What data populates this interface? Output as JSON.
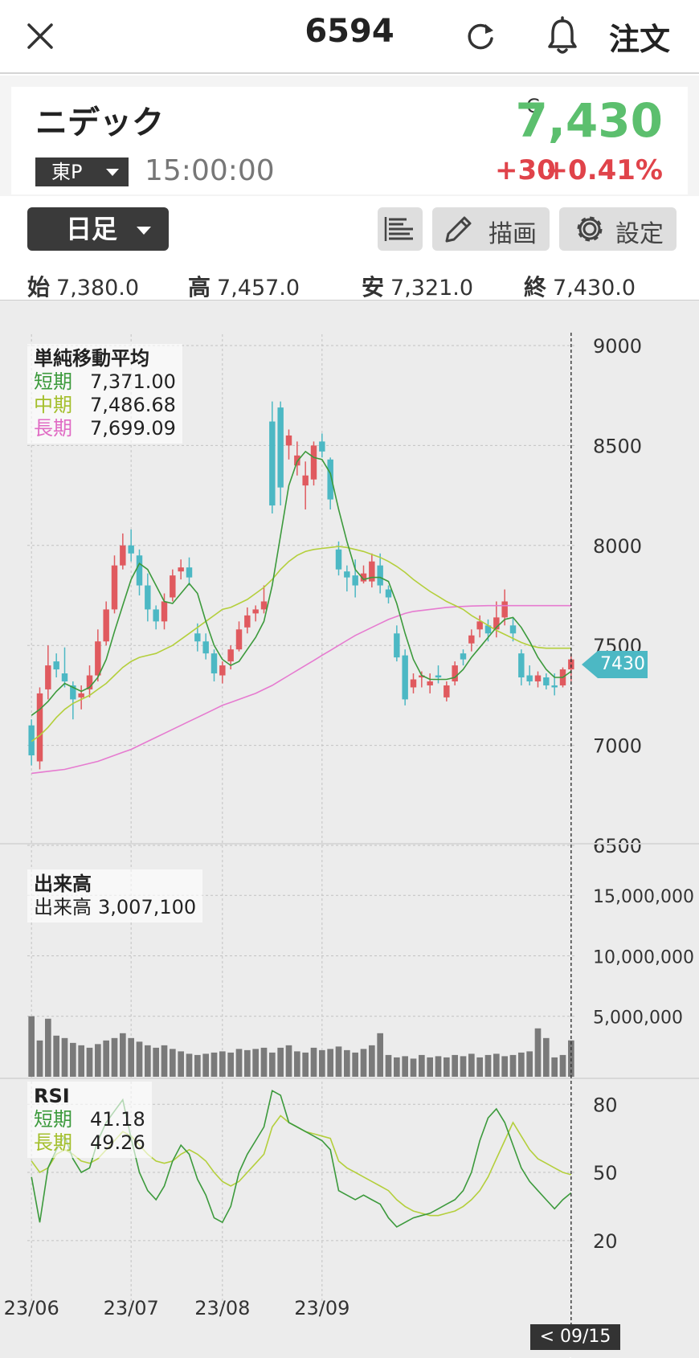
{
  "header": {
    "title": "6594",
    "order_label": "注文"
  },
  "stock": {
    "name": "ニデック",
    "market": "東P",
    "time": "15:00:00",
    "close_marker": "C",
    "price": "7,430",
    "change": "+30",
    "change_pct": "+0.41%"
  },
  "toolbar": {
    "period": "日足",
    "draw_label": "描画",
    "settings_label": "設定"
  },
  "ohlc": {
    "open_label": "始",
    "open": "7,380.0",
    "high_label": "高",
    "high": "7,457.0",
    "low_label": "安",
    "low": "7,321.0",
    "close_label": "終",
    "close": "7,430.0"
  },
  "sma_legend": {
    "title": "単純移動平均",
    "short_label": "短期",
    "short": "7,371.00",
    "mid_label": "中期",
    "mid": "7,486.68",
    "long_label": "長期",
    "long": "7,699.09"
  },
  "vol_legend": {
    "title": "出来高",
    "label": "出来高",
    "value": "3,007,100"
  },
  "rsi_legend": {
    "title": "RSI",
    "short_label": "短期",
    "short": "41.18",
    "long_label": "長期",
    "long": "49.26"
  },
  "current_price_tag": "7430",
  "date_tag": "< 09/15 >",
  "colors": {
    "up": "#e05a5f",
    "down": "#4cb8c4",
    "sma_short": "#3c9a3c",
    "sma_mid": "#b4cf3c",
    "sma_long": "#e67bd0",
    "price_green": "#5cbf6e",
    "change_red": "#e0434a"
  },
  "chart_data": {
    "type": "candlestick",
    "x_ticks": [
      "23/06",
      "23/07",
      "23/08",
      "23/09"
    ],
    "x_tick_index": [
      0,
      12,
      23,
      35
    ],
    "y_ticks": [
      9000,
      8500,
      8000,
      7500,
      7000,
      6500
    ],
    "ylim": [
      6500,
      9000
    ],
    "vol_ticks": [
      {
        "label": "15,000,000",
        "v": 15000000
      },
      {
        "label": "10,000,000",
        "v": 10000000
      },
      {
        "label": "5,000,000",
        "v": 5000000
      }
    ],
    "vol_max": 19000000,
    "rsi_ticks": [
      80,
      50,
      20
    ],
    "rsi_range": [
      -2,
      90
    ],
    "candles": [
      [
        7100,
        7130,
        6900,
        6950
      ],
      [
        6920,
        7290,
        6880,
        7260
      ],
      [
        7280,
        7500,
        7230,
        7400
      ],
      [
        7420,
        7460,
        7340,
        7380
      ],
      [
        7360,
        7490,
        7290,
        7320
      ],
      [
        7300,
        7320,
        7130,
        7230
      ],
      [
        7240,
        7300,
        7180,
        7260
      ],
      [
        7280,
        7400,
        7240,
        7350
      ],
      [
        7350,
        7580,
        7320,
        7520
      ],
      [
        7520,
        7720,
        7500,
        7680
      ],
      [
        7680,
        7950,
        7660,
        7900
      ],
      [
        7900,
        8060,
        7880,
        8000
      ],
      [
        8000,
        8080,
        7920,
        7960
      ],
      [
        7950,
        7980,
        7750,
        7800
      ],
      [
        7800,
        7860,
        7620,
        7680
      ],
      [
        7680,
        7700,
        7580,
        7620
      ],
      [
        7620,
        7760,
        7580,
        7720
      ],
      [
        7740,
        7880,
        7720,
        7850
      ],
      [
        7870,
        7930,
        7830,
        7890
      ],
      [
        7890,
        7940,
        7800,
        7840
      ],
      [
        7560,
        7610,
        7470,
        7520
      ],
      [
        7520,
        7560,
        7430,
        7460
      ],
      [
        7460,
        7480,
        7320,
        7360
      ],
      [
        7350,
        7420,
        7310,
        7400
      ],
      [
        7420,
        7500,
        7380,
        7480
      ],
      [
        7480,
        7620,
        7470,
        7580
      ],
      [
        7590,
        7690,
        7560,
        7650
      ],
      [
        7660,
        7700,
        7620,
        7680
      ],
      [
        7680,
        7800,
        7660,
        7720
      ],
      [
        8620,
        8720,
        8160,
        8200
      ],
      [
        8690,
        8720,
        8200,
        8290
      ],
      [
        8500,
        8580,
        8430,
        8550
      ],
      [
        8400,
        8520,
        8350,
        8450
      ],
      [
        8300,
        8420,
        8180,
        8350
      ],
      [
        8330,
        8520,
        8300,
        8500
      ],
      [
        8520,
        8560,
        8440,
        8470
      ],
      [
        8430,
        8440,
        8180,
        8230
      ],
      [
        7980,
        8020,
        7850,
        7880
      ],
      [
        7870,
        7900,
        7770,
        7840
      ],
      [
        7850,
        7930,
        7740,
        7800
      ],
      [
        7820,
        7900,
        7810,
        7860
      ],
      [
        7820,
        7960,
        7790,
        7920
      ],
      [
        7900,
        7960,
        7760,
        7800
      ],
      [
        7780,
        7800,
        7710,
        7740
      ],
      [
        7560,
        7600,
        7420,
        7440
      ],
      [
        7450,
        7480,
        7200,
        7230
      ],
      [
        7290,
        7360,
        7260,
        7330
      ],
      [
        7340,
        7370,
        7290,
        7350
      ],
      [
        7300,
        7360,
        7260,
        7320
      ],
      [
        7350,
        7400,
        7310,
        7340
      ],
      [
        7240,
        7320,
        7220,
        7300
      ],
      [
        7320,
        7420,
        7300,
        7400
      ],
      [
        7460,
        7480,
        7400,
        7430
      ],
      [
        7510,
        7580,
        7470,
        7550
      ],
      [
        7580,
        7650,
        7540,
        7620
      ],
      [
        7600,
        7630,
        7520,
        7560
      ],
      [
        7580,
        7720,
        7540,
        7640
      ],
      [
        7640,
        7780,
        7600,
        7720
      ],
      [
        7600,
        7640,
        7520,
        7560
      ],
      [
        7460,
        7480,
        7300,
        7340
      ],
      [
        7350,
        7400,
        7300,
        7320
      ],
      [
        7320,
        7370,
        7290,
        7350
      ],
      [
        7340,
        7360,
        7280,
        7300
      ],
      [
        7300,
        7360,
        7250,
        7290
      ],
      [
        7300,
        7390,
        7290,
        7380
      ],
      [
        7380,
        7457,
        7321,
        7430
      ]
    ],
    "sma_short": [
      7150,
      7180,
      7220,
      7270,
      7310,
      7290,
      7270,
      7290,
      7340,
      7430,
      7570,
      7700,
      7830,
      7910,
      7880,
      7800,
      7720,
      7710,
      7760,
      7810,
      7760,
      7620,
      7500,
      7430,
      7400,
      7420,
      7480,
      7540,
      7620,
      7800,
      8050,
      8300,
      8420,
      8470,
      8440,
      8430,
      8360,
      8180,
      8020,
      7880,
      7830,
      7840,
      7840,
      7820,
      7710,
      7560,
      7430,
      7350,
      7330,
      7330,
      7330,
      7340,
      7380,
      7440,
      7490,
      7540,
      7590,
      7630,
      7640,
      7590,
      7520,
      7440,
      7380,
      7340,
      7340,
      7370
    ],
    "sma_mid": [
      7020,
      7050,
      7090,
      7140,
      7180,
      7210,
      7230,
      7250,
      7280,
      7310,
      7350,
      7390,
      7420,
      7440,
      7450,
      7460,
      7480,
      7500,
      7530,
      7560,
      7590,
      7620,
      7650,
      7680,
      7690,
      7710,
      7730,
      7760,
      7790,
      7830,
      7880,
      7920,
      7950,
      7970,
      7980,
      7985,
      7990,
      7995,
      7990,
      7980,
      7970,
      7955,
      7940,
      7920,
      7895,
      7865,
      7830,
      7800,
      7770,
      7745,
      7720,
      7700,
      7680,
      7650,
      7625,
      7600,
      7575,
      7555,
      7535,
      7515,
      7500,
      7490,
      7486,
      7486,
      7486,
      7486
    ],
    "sma_long": [
      6860,
      6865,
      6870,
      6875,
      6880,
      6890,
      6900,
      6910,
      6920,
      6935,
      6950,
      6965,
      6980,
      7000,
      7020,
      7040,
      7060,
      7080,
      7100,
      7120,
      7140,
      7160,
      7180,
      7200,
      7215,
      7230,
      7245,
      7260,
      7280,
      7300,
      7325,
      7350,
      7375,
      7400,
      7425,
      7450,
      7475,
      7500,
      7525,
      7550,
      7570,
      7590,
      7610,
      7630,
      7645,
      7660,
      7670,
      7675,
      7680,
      7685,
      7690,
      7693,
      7695,
      7697,
      7698,
      7699,
      7699,
      7699,
      7699,
      7699,
      7699,
      7699,
      7699,
      7699,
      7699,
      7699
    ],
    "volume": [
      5000000,
      3000000,
      4800000,
      3400000,
      3200000,
      2800000,
      2600000,
      2400000,
      2700000,
      3000000,
      3200000,
      3600000,
      3200000,
      2900000,
      2600000,
      2400000,
      2600000,
      2300000,
      2100000,
      1900000,
      1800000,
      1900000,
      2000000,
      2100000,
      2000000,
      2300000,
      2200000,
      2300000,
      2400000,
      2000000,
      2400000,
      2600000,
      2100000,
      2000000,
      2400000,
      2200000,
      2300000,
      2500000,
      2200000,
      2000000,
      2300000,
      2600000,
      3600000,
      1800000,
      1600000,
      1700000,
      1500000,
      1800000,
      1600000,
      1700000,
      1600000,
      1800000,
      1700000,
      1900000,
      1600000,
      1800000,
      1900000,
      1700000,
      1800000,
      2000000,
      2100000,
      4000000,
      3200000,
      1600000,
      1800000,
      3007100
    ],
    "rsi_short": [
      48,
      28,
      52,
      60,
      66,
      56,
      50,
      52,
      64,
      72,
      77,
      82,
      65,
      50,
      42,
      38,
      44,
      55,
      62,
      58,
      47,
      40,
      30,
      28,
      35,
      50,
      58,
      64,
      70,
      86,
      84,
      72,
      70,
      68,
      66,
      64,
      60,
      42,
      40,
      38,
      40,
      38,
      36,
      30,
      26,
      28,
      30,
      31,
      32,
      34,
      36,
      38,
      42,
      50,
      64,
      74,
      78,
      72,
      62,
      52,
      46,
      42,
      38,
      34,
      38,
      41
    ],
    "rsi_long": [
      55,
      50,
      52,
      58,
      60,
      58,
      55,
      54,
      56,
      60,
      64,
      68,
      66,
      62,
      58,
      55,
      54,
      55,
      58,
      60,
      58,
      55,
      50,
      46,
      44,
      46,
      50,
      54,
      58,
      70,
      75,
      72,
      70,
      68,
      67,
      66,
      65,
      55,
      52,
      50,
      48,
      46,
      44,
      42,
      38,
      35,
      33,
      32,
      31,
      31,
      32,
      33,
      35,
      38,
      42,
      48,
      56,
      64,
      72,
      66,
      60,
      56,
      54,
      52,
      50,
      49
    ]
  }
}
